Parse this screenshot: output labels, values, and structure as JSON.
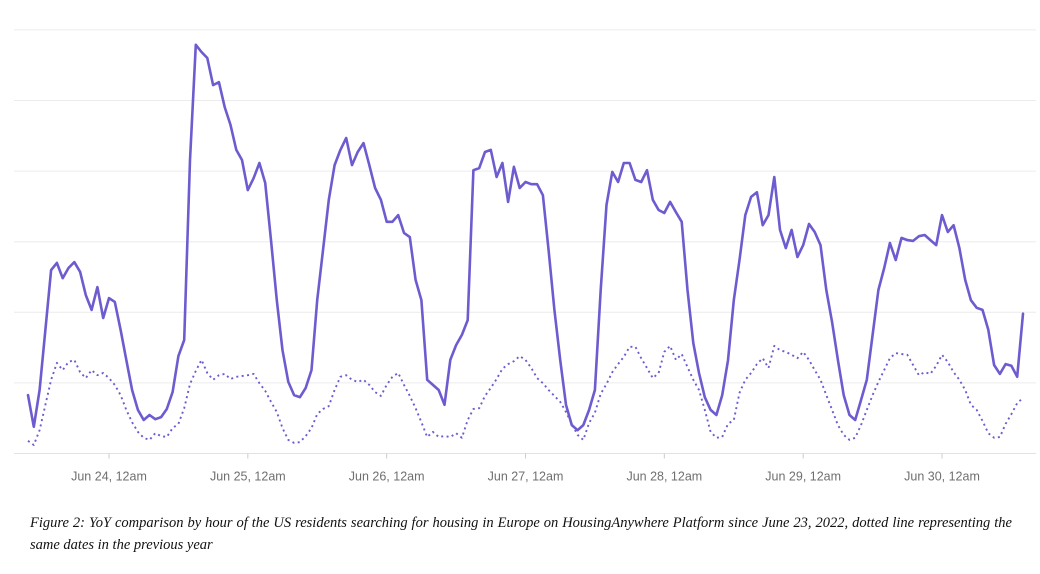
{
  "figure": {
    "caption": "Figure 2: YoY comparison by hour of the US residents searching for housing in Europe on HousingAnywhere Platform since June 23, 2022, dotted line representing the same dates in the previous year"
  },
  "colors": {
    "line_purple": "#6c5ccf",
    "gridline": "#ececec",
    "axis_line": "#e2e2e2",
    "tick_mark": "#cccccc",
    "tick_text": "#6f6f6f",
    "background": "#ffffff"
  },
  "chart_data": {
    "type": "line",
    "title": "",
    "xlabel": "",
    "ylabel": "",
    "legend": "none (line styles explained in caption)",
    "grid": "horizontal-only",
    "y_axis": {
      "labels_visible": false,
      "range": [
        0,
        100
      ],
      "gridline_count": 6
    },
    "x_axis": {
      "unit": "hours",
      "start": "Jun 23, ~10am",
      "end": "Jun 30, ~2pm",
      "interval_hours": 1,
      "tick_labels": [
        "Jun 24, 12am",
        "Jun 25, 12am",
        "Jun 26, 12am",
        "Jun 27, 12am",
        "Jun 28, 12am",
        "Jun 29, 12am",
        "Jun 30, 12am"
      ],
      "tick_hours_from_start": [
        14,
        38,
        62,
        86,
        110,
        134,
        158
      ]
    },
    "series": [
      {
        "name": "US residents searching for housing in Europe, hourly, since June 23, 2022",
        "style": "solid",
        "color": "#6c5ccf",
        "values": [
          13.8,
          6.3,
          15,
          29.2,
          43.3,
          45,
          41.4,
          43.8,
          45.2,
          42.9,
          37.4,
          33.9,
          39.3,
          32,
          36.7,
          35.8,
          29.2,
          22.1,
          15,
          10.3,
          7.9,
          9.1,
          8.1,
          8.6,
          10.5,
          14.5,
          23,
          26.8,
          69.3,
          96.5,
          94.8,
          93.4,
          87,
          87.7,
          81.8,
          77.6,
          71.7,
          69.3,
          62.2,
          65,
          68.6,
          63.9,
          50.4,
          36.2,
          24.4,
          16.9,
          13.8,
          13.3,
          15.5,
          19.7,
          36.2,
          48,
          59.9,
          68.1,
          71.7,
          74.5,
          68.1,
          71.2,
          73.3,
          68.1,
          62.7,
          59.9,
          54.7,
          54.7,
          56.3,
          52.1,
          51.1,
          41,
          36.2,
          17.4,
          16.2,
          15,
          11.5,
          22.1,
          25.6,
          28,
          31.5,
          66.9,
          67.4,
          71.2,
          71.7,
          65.3,
          68.6,
          59.4,
          67.7,
          62.7,
          64.1,
          63.6,
          63.6,
          61,
          48,
          33.9,
          22.1,
          11.5,
          6.7,
          5.5,
          6.7,
          10.3,
          15,
          38.6,
          58.7,
          66.5,
          64.1,
          68.6,
          68.6,
          64.6,
          64.1,
          66.9,
          59.9,
          57.5,
          56.8,
          59.4,
          57,
          54.7,
          38.6,
          26.1,
          19,
          13.3,
          10.3,
          9.1,
          13.8,
          22,
          36.2,
          45.7,
          56.3,
          60.6,
          61.7,
          53.9,
          56.3,
          65.3,
          52.8,
          48.5,
          52.8,
          46.4,
          49.2,
          54.2,
          52.3,
          49.2,
          38.6,
          31,
          22.1,
          13.8,
          9.1,
          7.9,
          12.6,
          17.4,
          28,
          38.6,
          43.8,
          49.7,
          45.7,
          50.9,
          50.4,
          50.2,
          51.3,
          51.6,
          50.4,
          49.2,
          56.3,
          52.3,
          53.9,
          48.5,
          41,
          36.2,
          34.4,
          33.9,
          29.2,
          20.9,
          18.8,
          21.1,
          20.7,
          18.1,
          33
        ]
      },
      {
        "name": "Same dates in the previous year (dotted)",
        "style": "dotted",
        "color": "#6c5ccf",
        "values": [
          3,
          2,
          5.5,
          11.5,
          17.4,
          21.4,
          19.7,
          21.6,
          22.1,
          19.2,
          17.8,
          19.7,
          18.5,
          19,
          17.8,
          16.2,
          13.8,
          10.3,
          7.4,
          5.1,
          3.7,
          3.2,
          4.8,
          4.1,
          3.9,
          6,
          7,
          10.7,
          16.4,
          19.5,
          22.1,
          19,
          17.4,
          18.5,
          18.8,
          17.6,
          18.1,
          18.3,
          18.5,
          18.8,
          16.6,
          14.8,
          12.2,
          9.8,
          6,
          3.2,
          2.5,
          2.7,
          4.1,
          6,
          9.3,
          10.5,
          11.2,
          15,
          18.1,
          18.5,
          17.4,
          16.9,
          17.4,
          16.2,
          14.5,
          13.6,
          16.2,
          18.1,
          19,
          16.2,
          13.6,
          10.7,
          7.4,
          3.9,
          5.1,
          3.9,
          4.1,
          3.9,
          4.8,
          3.7,
          7.9,
          10.5,
          10.7,
          13.6,
          15.5,
          17.6,
          20,
          21.1,
          21.8,
          23,
          22.1,
          20.2,
          17.8,
          16.6,
          15,
          13.6,
          12.2,
          9.8,
          7,
          4.4,
          3.2,
          7.2,
          9.6,
          14.1,
          16.4,
          19.2,
          21.1,
          22.8,
          25.2,
          25.2,
          22.5,
          20.2,
          17.8,
          19,
          24,
          25.4,
          22.1,
          23.5,
          20.4,
          17.4,
          15,
          10.3,
          5.1,
          3.7,
          3.9,
          7,
          7.9,
          14.3,
          17.4,
          19,
          21.1,
          22.5,
          20.2,
          25.4,
          24.4,
          24,
          23.3,
          22.5,
          24,
          22.1,
          19.7,
          17.4,
          13.8,
          10.3,
          6.7,
          4.4,
          3.2,
          3.7,
          6.7,
          10.3,
          13.8,
          16.9,
          19.7,
          22.5,
          23.7,
          23.5,
          23.3,
          20.9,
          18.5,
          19.2,
          18.8,
          20.7,
          23.3,
          21.6,
          19.2,
          17.4,
          15,
          11.5,
          10.3,
          7.7,
          4.8,
          3.7,
          3.9,
          7,
          9.3,
          11.9,
          13.1
        ]
      }
    ]
  }
}
